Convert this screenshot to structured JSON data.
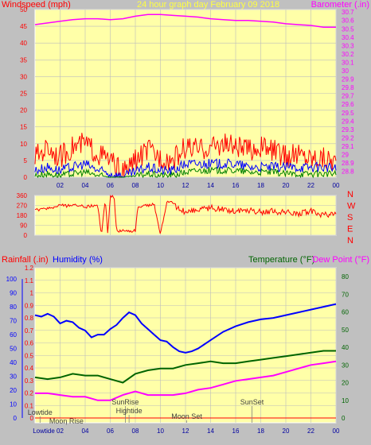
{
  "header": {
    "left_label": "Windspeed (mph)",
    "center_label": "24 hour graph day   February 09 2018",
    "right_label": "Barometer (.in)"
  },
  "colors": {
    "background": "#c0c0c0",
    "plot_bg": "#ffffa8",
    "grid": "#bdbdbd",
    "wind_gust": "#ff0000",
    "wind_avg": "#0000ff",
    "wind_low": "#008000",
    "barometer": "#ff00ff",
    "direction": "#ff0000",
    "rain": "#ff0000",
    "humidity": "#0000ff",
    "temperature": "#006400",
    "dewpoint": "#ff00ff",
    "axis_text_left": "#ff0000",
    "axis_text_right": "#ff00ff",
    "axis_text_time": "#0000a0"
  },
  "chart_data": [
    {
      "type": "line",
      "name": "wind-barometer",
      "x_ticks": [
        "02",
        "04",
        "06",
        "08",
        "10",
        "12",
        "14",
        "16",
        "18",
        "20",
        "22",
        "00"
      ],
      "ylabel": "Windspeed (mph)",
      "y_ticks": [
        "0",
        "5",
        "10",
        "15",
        "20",
        "25",
        "30",
        "35",
        "40",
        "45",
        "50"
      ],
      "ylim": [
        0,
        50
      ],
      "y2label": "Barometer (.in)",
      "y2_ticks": [
        "28.8",
        "28.9",
        "29",
        "29.1",
        "29.2",
        "29.3",
        "29.4",
        "29.5",
        "29.6",
        "29.7",
        "29.8",
        "29.9",
        "30",
        "30.1",
        "30.2",
        "30.3",
        "30.4",
        "30.5",
        "30.6",
        "30.7"
      ],
      "y2lim": [
        28.73,
        30.73
      ],
      "series": [
        {
          "key": "gust",
          "hours": [
            0,
            1,
            2,
            3,
            4,
            5,
            6,
            7,
            8,
            9,
            10,
            11,
            12,
            13,
            14,
            15,
            16,
            17,
            18,
            19,
            20,
            21,
            22,
            23,
            24
          ],
          "values": [
            6,
            9,
            6,
            9,
            10,
            7,
            5,
            1,
            5,
            8,
            6,
            5,
            9,
            8,
            9,
            10,
            9,
            8,
            9,
            8,
            6,
            7,
            6,
            6,
            5
          ]
        },
        {
          "key": "avg",
          "hours": [
            0,
            1,
            2,
            3,
            4,
            5,
            6,
            7,
            8,
            9,
            10,
            11,
            12,
            13,
            14,
            15,
            16,
            17,
            18,
            19,
            20,
            21,
            22,
            23,
            24
          ],
          "values": [
            2,
            3,
            2,
            3,
            4,
            2,
            1,
            0.2,
            1.5,
            3,
            2,
            2,
            4,
            4,
            4,
            4,
            4,
            3,
            3,
            3,
            3,
            3,
            3,
            3,
            2.5
          ]
        },
        {
          "key": "low",
          "hours": [
            0,
            1,
            2,
            3,
            4,
            5,
            6,
            7,
            8,
            9,
            10,
            11,
            12,
            13,
            14,
            15,
            16,
            17,
            18,
            19,
            20,
            21,
            22,
            23,
            24
          ],
          "values": [
            0.5,
            1,
            0.5,
            1,
            1.5,
            0.5,
            0,
            0,
            0.3,
            1,
            0.5,
            0.5,
            1.5,
            2,
            2,
            2,
            2,
            1.5,
            1.5,
            1.5,
            1,
            1,
            1,
            1,
            1
          ]
        },
        {
          "key": "barometer",
          "hours": [
            0,
            1,
            2,
            3,
            4,
            5,
            6,
            7,
            8,
            9,
            10,
            11,
            12,
            13,
            14,
            15,
            16,
            17,
            18,
            19,
            20,
            21,
            22,
            23,
            24
          ],
          "values": [
            30.55,
            30.57,
            30.59,
            30.61,
            30.62,
            30.62,
            30.61,
            30.62,
            30.65,
            30.67,
            30.67,
            30.66,
            30.65,
            30.64,
            30.62,
            30.61,
            30.6,
            30.6,
            30.59,
            30.58,
            30.56,
            30.55,
            30.54,
            30.52,
            30.52
          ]
        }
      ]
    },
    {
      "type": "line",
      "name": "wind-direction",
      "right_labels": [
        "N",
        "W",
        "S",
        "E",
        "N"
      ],
      "y_ticks": [
        "0",
        "90",
        "180",
        "270",
        "360"
      ],
      "ylim": [
        0,
        360
      ],
      "series": [
        {
          "key": "direction",
          "hours": [
            0,
            0.5,
            1,
            1.5,
            2,
            2.5,
            3,
            3.5,
            4,
            4.5,
            5,
            5.3,
            5.6,
            5.8,
            6,
            6.3,
            6.5,
            7,
            7.5,
            8,
            8.2,
            8.5,
            9,
            9.5,
            10,
            10.5,
            11,
            11.2,
            11.5,
            12,
            13,
            14,
            15,
            16,
            17,
            18,
            19,
            20,
            21,
            22,
            23,
            24
          ],
          "values": [
            230,
            230,
            245,
            250,
            275,
            265,
            270,
            275,
            255,
            265,
            270,
            5,
            330,
            10,
            350,
            355,
            40,
            40,
            40,
            40,
            250,
            265,
            270,
            280,
            5,
            300,
            295,
            260,
            240,
            210,
            230,
            245,
            230,
            220,
            225,
            210,
            215,
            205,
            200,
            215,
            185,
            180
          ]
        }
      ]
    },
    {
      "type": "line",
      "name": "rain-humidity-temperature",
      "x_ticks": [
        "02",
        "04",
        "06",
        "08",
        "10",
        "12",
        "14",
        "16",
        "18",
        "20",
        "22",
        "00"
      ],
      "header": {
        "rainfall": "Rainfall (.in)",
        "humidity": "Humidity (%)",
        "temperature": "Temperature (°F)",
        "dewpoint": "Dew Point (°F)"
      },
      "humidity_ticks": [
        "0",
        "10",
        "20",
        "30",
        "40",
        "50",
        "60",
        "70",
        "80",
        "90",
        "100"
      ],
      "humidity_lim": [
        0,
        100
      ],
      "rain_ticks": [
        "0",
        "0.1",
        "0.2",
        "0.3",
        "0.4",
        "0.5",
        "0.6",
        "0.7",
        "0.8",
        "0.9",
        "1",
        "1.1",
        "1.2"
      ],
      "rain_lim": [
        0,
        1.2
      ],
      "temp_ticks": [
        "0",
        "10",
        "20",
        "30",
        "40",
        "50",
        "60",
        "70",
        "80"
      ],
      "temp_lim": [
        0,
        85
      ],
      "series": [
        {
          "key": "humidity",
          "hours": [
            0,
            0.5,
            1,
            1.5,
            2,
            2.5,
            3,
            3.5,
            4,
            4.5,
            5,
            5.5,
            6,
            6.5,
            7,
            7.5,
            8,
            8.5,
            9,
            9.5,
            10,
            10.5,
            11,
            11.5,
            12,
            12.5,
            13,
            14,
            15,
            16,
            17,
            18,
            19,
            20,
            21,
            22,
            23,
            24
          ],
          "values": [
            74,
            73,
            75,
            73,
            68,
            70,
            69,
            65,
            63,
            58,
            60,
            60,
            64,
            67,
            72,
            76,
            74,
            68,
            64,
            60,
            56,
            55,
            51,
            48,
            47,
            48,
            50,
            56,
            62,
            66,
            69,
            71,
            72,
            74,
            76,
            78,
            80,
            82
          ]
        },
        {
          "key": "temperature",
          "hours": [
            0,
            1,
            2,
            3,
            4,
            5,
            6,
            7,
            8,
            9,
            10,
            11,
            12,
            13,
            14,
            15,
            16,
            17,
            18,
            19,
            20,
            21,
            22,
            23,
            24
          ],
          "values": [
            23,
            22,
            23,
            25,
            24,
            24,
            22,
            20,
            25,
            27,
            28,
            28,
            30,
            31,
            32,
            31,
            31,
            32,
            33,
            34,
            35,
            36,
            37,
            38,
            38
          ]
        },
        {
          "key": "dewpoint",
          "hours": [
            0,
            1,
            2,
            3,
            4,
            5,
            6,
            7,
            8,
            9,
            10,
            11,
            12,
            13,
            14,
            15,
            16,
            17,
            18,
            19,
            20,
            21,
            22,
            23,
            24
          ],
          "values": [
            14,
            14,
            13,
            12,
            12,
            10,
            10,
            13,
            15,
            13,
            13,
            13,
            14,
            16,
            17,
            19,
            21,
            22,
            23,
            24,
            26,
            28,
            30,
            31,
            32
          ]
        },
        {
          "key": "rain",
          "hours": [
            0,
            24
          ],
          "values": [
            0,
            0
          ]
        }
      ],
      "annotations": [
        {
          "key": "lowtide1",
          "label": "Lowtide",
          "hour": 0.4
        },
        {
          "key": "moonrise",
          "label": "Moon Rise",
          "hour": 2.5
        },
        {
          "key": "sunrise",
          "label": "SunRise",
          "hour": 7.2
        },
        {
          "key": "hightide",
          "label": "Hightide",
          "hour": 7.5
        },
        {
          "key": "moonset",
          "label": "Moon Set",
          "hour": 12.1
        },
        {
          "key": "sunset",
          "label": "SunSet",
          "hour": 17.3
        }
      ]
    }
  ]
}
